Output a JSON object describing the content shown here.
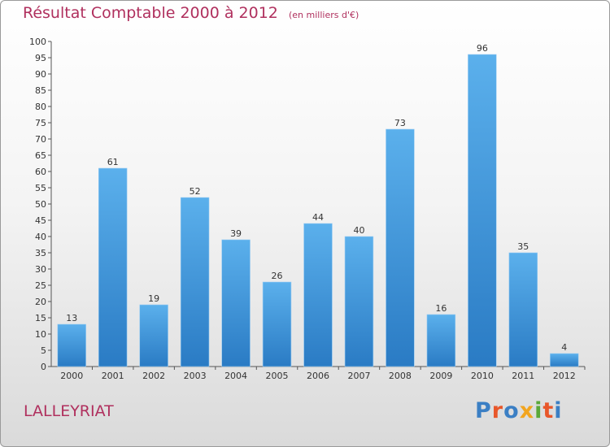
{
  "header": {
    "title": "Résultat Comptable 2000 à 2012",
    "subtitle": "(en milliers d'€)"
  },
  "footer": {
    "commune": "LALLEYRIAT",
    "brand": "Proxiti",
    "brand_colors": [
      "#3b7fc4",
      "#e8572a",
      "#3b7fc4",
      "#f2a51f",
      "#5aa83a",
      "#e8572a",
      "#3b7fc4"
    ]
  },
  "colors": {
    "bar": "#4aa3e6",
    "accent": "#b0305e"
  },
  "chart_data": {
    "type": "bar",
    "categories": [
      "2000",
      "2001",
      "2002",
      "2003",
      "2004",
      "2005",
      "2006",
      "2007",
      "2008",
      "2009",
      "2010",
      "2011",
      "2012"
    ],
    "values": [
      13,
      61,
      19,
      52,
      39,
      26,
      44,
      40,
      73,
      16,
      96,
      35,
      4
    ],
    "ylim": [
      0,
      100
    ],
    "ytick_step": 5,
    "grid": false,
    "legend": "none"
  }
}
